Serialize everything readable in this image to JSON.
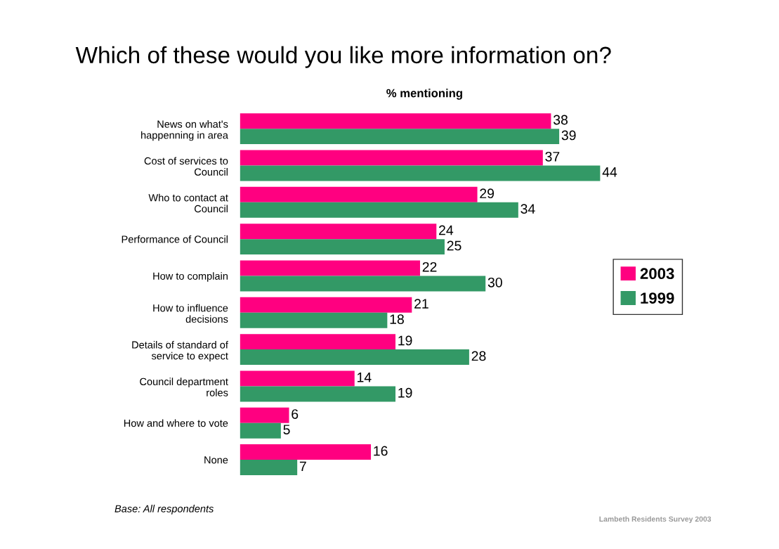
{
  "chart_data": {
    "type": "bar",
    "orientation": "horizontal",
    "title": "Which of these would you like more information on?",
    "subtitle": "% mentioning",
    "categories": [
      "News on what's\nhappenning in area",
      "Cost of services to\nCouncil",
      "Who to contact at\nCouncil",
      "Performance of Council",
      "How to complain",
      "How to influence\ndecisions",
      "Details of standard of\nservice to expect",
      "Council department\nroles",
      "How and where to vote",
      "None"
    ],
    "series": [
      {
        "name": "2003",
        "color": "#ff0080",
        "values": [
          38,
          37,
          29,
          24,
          22,
          21,
          19,
          14,
          6,
          16
        ]
      },
      {
        "name": "1999",
        "color": "#339966",
        "values": [
          39,
          44,
          34,
          25,
          30,
          18,
          28,
          19,
          5,
          7
        ]
      }
    ],
    "data_labels": true,
    "legend": "right",
    "tick_labels": "y",
    "grid": false,
    "annotations": [
      "Base: All respondents",
      "Lambeth Residents Survey 2003"
    ]
  }
}
